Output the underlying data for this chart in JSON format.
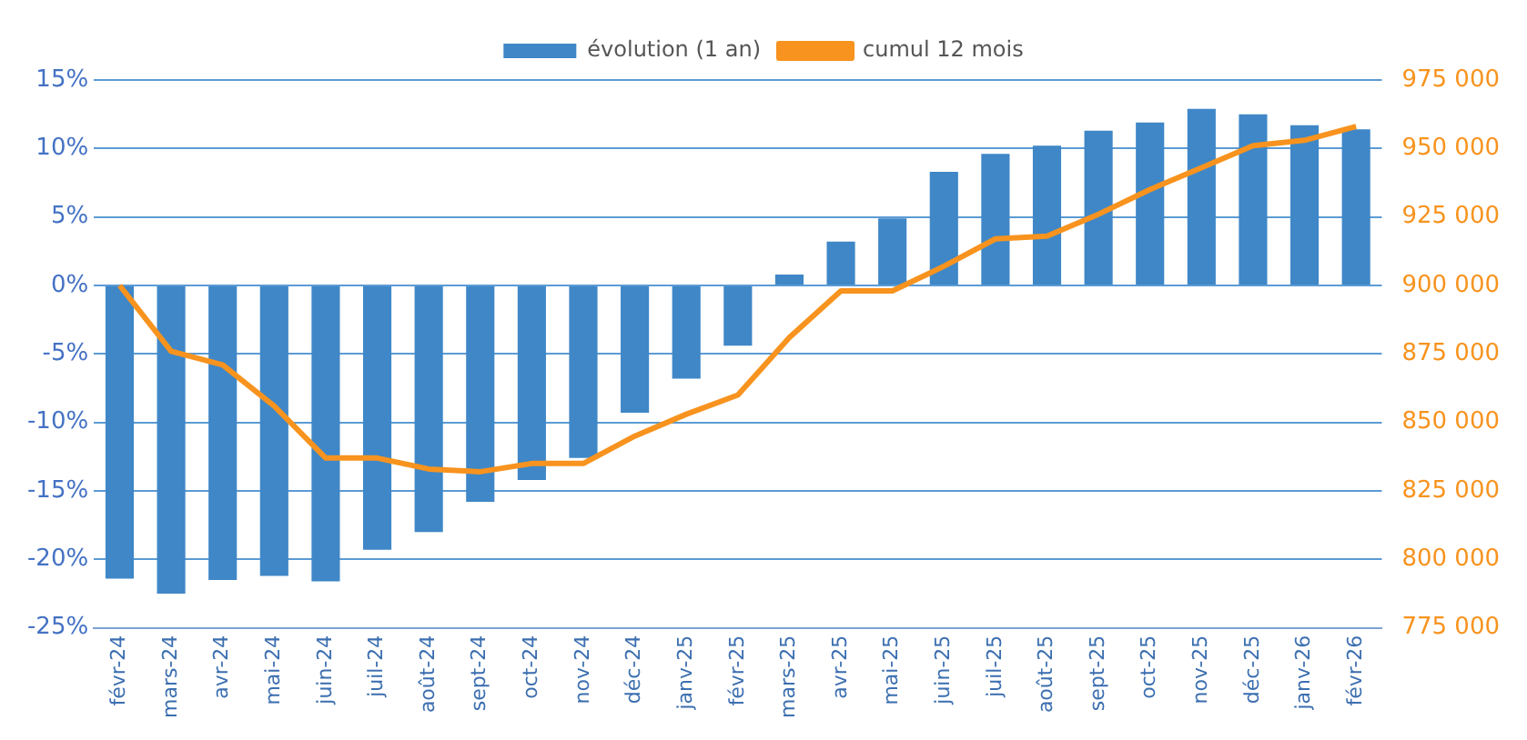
{
  "chart_data": {
    "type": "bar",
    "categories": [
      "févr-24",
      "mars-24",
      "avr-24",
      "mai-24",
      "juin-24",
      "juil-24",
      "août-24",
      "sept-24",
      "oct-24",
      "nov-24",
      "déc-24",
      "janv-25",
      "févr-25",
      "mars-25",
      "avr-25",
      "mai-25",
      "juin-25",
      "juil-25",
      "août-25",
      "sept-25",
      "oct-25",
      "nov-25",
      "déc-25",
      "janv-26",
      "févr-26"
    ],
    "series": [
      {
        "name": "évolution (1 an)",
        "type": "bar",
        "color": "#3f87c7",
        "values": [
          -21.4,
          -22.5,
          -21.5,
          -21.2,
          -21.6,
          -19.3,
          -18.0,
          -15.8,
          -14.2,
          -12.6,
          -9.3,
          -6.8,
          -4.4,
          0.8,
          3.2,
          4.9,
          8.3,
          9.6,
          10.2,
          11.3,
          11.9,
          12.9,
          12.5,
          11.7,
          11.4
        ]
      },
      {
        "name": "cumul 12 mois",
        "type": "line",
        "axis": "y2",
        "color": "#f7931e",
        "values": [
          900000,
          876000,
          871000,
          856000,
          837000,
          837000,
          833000,
          832000,
          835000,
          835000,
          845000,
          853000,
          860000,
          881000,
          898000,
          898000,
          907000,
          917000,
          918000,
          926000,
          935000,
          943000,
          951000,
          953000,
          958000
        ]
      }
    ],
    "ylim": [
      -25,
      15
    ],
    "yticks": [
      {
        "value": -25,
        "label": "-25%"
      },
      {
        "value": -20,
        "label": "-20%"
      },
      {
        "value": -15,
        "label": "-15%"
      },
      {
        "value": -10,
        "label": "-10%"
      },
      {
        "value": -5,
        "label": "-5%"
      },
      {
        "value": 0,
        "label": "0%"
      },
      {
        "value": 5,
        "label": "5%"
      },
      {
        "value": 10,
        "label": "10%"
      },
      {
        "value": 15,
        "label": "15%"
      }
    ],
    "y2lim": [
      775000,
      975000
    ],
    "y2ticks": [
      {
        "value": 775000,
        "label": "775 000"
      },
      {
        "value": 800000,
        "label": "800 000"
      },
      {
        "value": 825000,
        "label": "825 000"
      },
      {
        "value": 850000,
        "label": "850 000"
      },
      {
        "value": 875000,
        "label": "875 000"
      },
      {
        "value": 900000,
        "label": "900 000"
      },
      {
        "value": 925000,
        "label": "925 000"
      },
      {
        "value": 950000,
        "label": "950 000"
      },
      {
        "value": 975000,
        "label": "975 000"
      }
    ],
    "grid": "y",
    "legend": "top",
    "marker": "none",
    "line_style": "solid"
  }
}
